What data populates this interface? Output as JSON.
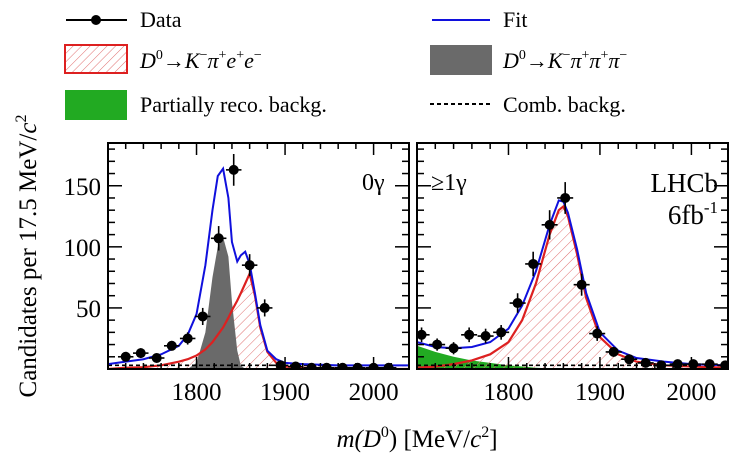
{
  "legend": {
    "items": [
      {
        "key": "data",
        "label": "Data"
      },
      {
        "key": "fit",
        "label": "Fit"
      },
      {
        "key": "signal",
        "label_parts": [
          "D",
          "0",
          "→K",
          "−",
          "π",
          "+",
          "e",
          "+",
          "e",
          "−"
        ]
      },
      {
        "key": "norm",
        "label_parts": [
          "D",
          "0",
          "→K",
          "−",
          "π",
          "+",
          "π",
          "+",
          "π",
          "−"
        ]
      },
      {
        "key": "partial",
        "label": "Partially reco. backg."
      },
      {
        "key": "comb",
        "label": "Comb. backg."
      }
    ]
  },
  "colors": {
    "fit": "#1010dd",
    "signal_line": "#dd2020",
    "signal_hatch": "#e07070",
    "norm_fill": "#6a6a6a",
    "partial_fill": "#22aa22"
  },
  "axes": {
    "ylabel_parts": [
      "Candidates per 17.5 MeV/",
      "c",
      "2"
    ],
    "xlabel_parts": [
      "m",
      "(D",
      "0",
      ") [MeV/",
      "c",
      "2",
      "]"
    ],
    "y_ticks": [
      "50",
      "100",
      "150"
    ],
    "x_ticks": [
      "1800",
      "1900",
      "2000"
    ]
  },
  "chart_data": [
    {
      "type": "line",
      "panel": "left",
      "label": "0γ",
      "xlim": [
        1700,
        2040
      ],
      "ylim": [
        0,
        185
      ],
      "x_ticks": [
        1800,
        1900,
        2000
      ],
      "y_ticks": [
        50,
        100,
        150
      ],
      "data_points": {
        "x": [
          1720,
          1737,
          1755,
          1772,
          1790,
          1807,
          1825,
          1842,
          1860,
          1877,
          1895,
          1912,
          1930,
          1947,
          1965,
          1982,
          2000,
          2017
        ],
        "y": [
          10,
          13,
          9,
          19,
          25,
          43,
          107,
          163,
          85,
          50,
          3,
          2,
          1,
          1,
          1,
          1,
          1,
          1
        ],
        "yerr": [
          3,
          4,
          3,
          4,
          5,
          7,
          10,
          13,
          9,
          7,
          2,
          1,
          1,
          1,
          1,
          1,
          1,
          1
        ]
      },
      "curves": {
        "x": [
          1700,
          1720,
          1740,
          1760,
          1780,
          1790,
          1800,
          1810,
          1818,
          1824,
          1830,
          1836,
          1840,
          1846,
          1850,
          1855,
          1860,
          1866,
          1872,
          1880,
          1890,
          1900,
          1920,
          1960,
          2000,
          2040
        ],
        "fit": [
          4,
          6,
          8,
          12,
          19,
          28,
          45,
          85,
          130,
          158,
          164,
          140,
          104,
          88,
          93,
          96,
          86,
          62,
          36,
          15,
          8,
          5,
          4,
          3,
          3,
          3
        ],
        "signal": [
          0,
          1,
          1.5,
          3,
          6,
          8,
          11,
          16,
          22,
          28,
          34,
          42,
          48,
          56,
          62,
          70,
          78,
          60,
          34,
          14,
          5,
          2,
          1,
          0.5,
          0,
          0
        ],
        "normalization": [
          0,
          0,
          0,
          0,
          0,
          0,
          5,
          30,
          75,
          100,
          108,
          92,
          55,
          15,
          3,
          0,
          0,
          0,
          0,
          0,
          0,
          0,
          0,
          0,
          0,
          0
        ],
        "combinatorial": [
          3,
          3,
          3,
          3,
          3,
          3,
          3,
          3,
          3,
          3,
          3,
          3,
          3,
          3,
          3,
          3,
          3,
          3,
          3,
          3,
          3,
          3,
          3,
          3,
          3,
          3
        ]
      }
    },
    {
      "type": "line",
      "panel": "right",
      "label": "≥1γ",
      "experiment_label": "LHCb",
      "luminosity_label": "6fb",
      "luminosity_sup": "-1",
      "xlim": [
        1700,
        2040
      ],
      "ylim": [
        0,
        185
      ],
      "x_ticks": [
        1800,
        1900,
        2000
      ],
      "y_ticks": [
        50,
        100,
        150
      ],
      "data_points": {
        "x": [
          1705,
          1722,
          1740,
          1757,
          1775,
          1792,
          1810,
          1827,
          1845,
          1862,
          1880,
          1897,
          1915,
          1932,
          1950,
          1967,
          1985,
          2002,
          2020,
          2037
        ],
        "y": [
          28,
          20,
          17,
          28,
          27,
          30,
          54,
          86,
          118,
          140,
          69,
          29,
          14,
          8,
          5,
          3,
          4,
          4,
          4,
          3
        ],
        "yerr": [
          6,
          5,
          5,
          6,
          6,
          6,
          8,
          10,
          12,
          13,
          9,
          6,
          4,
          3,
          3,
          2,
          2,
          2,
          2,
          2
        ]
      },
      "curves": {
        "x": [
          1700,
          1720,
          1740,
          1760,
          1780,
          1800,
          1815,
          1830,
          1845,
          1855,
          1860,
          1865,
          1875,
          1885,
          1900,
          1920,
          1940,
          1970,
          2000,
          2040
        ],
        "fit": [
          22,
          18,
          17,
          18,
          22,
          33,
          52,
          80,
          118,
          138,
          137,
          128,
          98,
          62,
          30,
          15,
          9,
          6,
          4,
          3
        ],
        "signal": [
          1,
          2,
          4,
          7,
          12,
          22,
          40,
          70,
          110,
          130,
          133,
          125,
          94,
          58,
          26,
          12,
          6,
          3,
          2,
          1
        ],
        "partially_reconstructed": [
          19,
          14,
          10,
          7,
          5,
          3,
          2,
          1,
          0.5,
          0,
          0,
          0,
          0,
          0,
          0,
          0,
          0,
          0,
          0,
          0
        ],
        "combinatorial": [
          3,
          3,
          3,
          3,
          3,
          3,
          3,
          3,
          3,
          3,
          3,
          3,
          3,
          3,
          3,
          3,
          3,
          3,
          3,
          3
        ]
      }
    }
  ]
}
